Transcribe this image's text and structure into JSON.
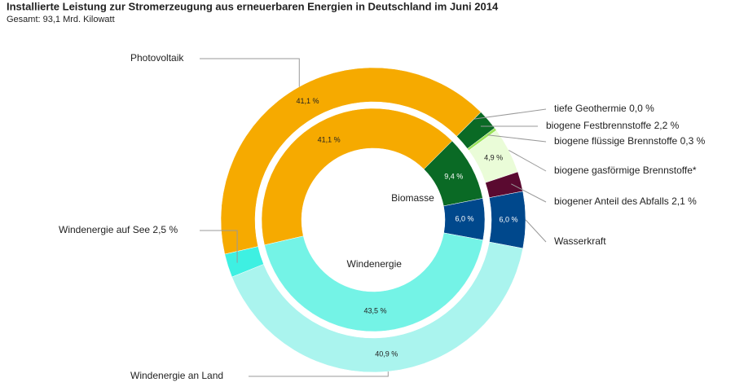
{
  "chart_data": {
    "type": "nested-donut",
    "title": "Installierte Leistung zur Stromerzeugung aus erneuerbaren Energien in Deutschland im Juni 2014",
    "subtitle": "Gesamt: 93,1 Mrd. Kilowatt",
    "inner": {
      "categories": [
        null,
        "Biomasse",
        null,
        "Windenergie"
      ],
      "values": [
        41.1,
        9.4,
        6.0,
        43.5
      ],
      "value_labels": [
        "41,1 %",
        "9,4 %",
        "6,0 %",
        "43,5 %"
      ],
      "colors": [
        "#f6aa00",
        "#0a6a25",
        "#00488c",
        "#74f3e6"
      ]
    },
    "outer": {
      "categories": [
        "Photovoltaik",
        "tiefe Geothermie",
        "biogene Festbrennstoffe",
        "biogene flüssige Brennstoffe",
        "biogene gasförmige Brennstoffe*",
        "biogener Anteil des Abfalls",
        "Wasserkraft",
        "Windenergie an Land",
        "Windenergie auf See"
      ],
      "values": [
        41.1,
        0.0,
        2.2,
        0.3,
        4.9,
        2.1,
        6.0,
        40.9,
        2.5
      ],
      "value_labels": [
        "41,1 %",
        "0,0 %",
        "2,2 %",
        "0,3 %",
        "4,9 %",
        "2,1 %",
        "6,0 %",
        "40,9 %",
        "2,5 %"
      ],
      "colors": [
        "#f6aa00",
        "#7fd0a0",
        "#0a6a25",
        "#9be35a",
        "#eafcd8",
        "#5a0a30",
        "#00488c",
        "#aaf4ee",
        "#3ef0e2"
      ]
    }
  }
}
